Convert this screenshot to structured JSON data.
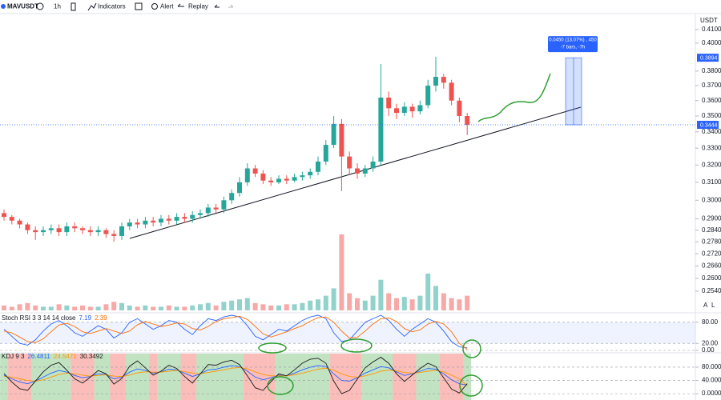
{
  "toolbar": {
    "symbol": "MAVUSDT",
    "interval": "1h",
    "indicators": "Indicators",
    "alert": "Alert",
    "replay": "Replay"
  },
  "axis_buttons": [
    "A",
    "L"
  ],
  "chart_data": [
    {
      "type": "candlestick",
      "unit": "USDT",
      "log_scale": true,
      "up_color": "#26a69a",
      "down_color": "#ef5350",
      "open": [
        0.293,
        0.291,
        0.289,
        0.287,
        0.284,
        0.283,
        0.284,
        0.285,
        0.283,
        0.286,
        0.285,
        0.284,
        0.283,
        0.284,
        0.282,
        0.281,
        0.286,
        0.288,
        0.287,
        0.289,
        0.288,
        0.29,
        0.289,
        0.291,
        0.29,
        0.292,
        0.293,
        0.296,
        0.295,
        0.3,
        0.304,
        0.31,
        0.318,
        0.315,
        0.311,
        0.31,
        0.312,
        0.311,
        0.313,
        0.314,
        0.316,
        0.322,
        0.332,
        0.345,
        0.325,
        0.318,
        0.315,
        0.318,
        0.322,
        0.362,
        0.355,
        0.352,
        0.356,
        0.353,
        0.357,
        0.37,
        0.376,
        0.372,
        0.36,
        0.35
      ],
      "high": [
        0.295,
        0.292,
        0.29,
        0.288,
        0.286,
        0.286,
        0.287,
        0.287,
        0.288,
        0.288,
        0.286,
        0.286,
        0.286,
        0.285,
        0.284,
        0.288,
        0.29,
        0.29,
        0.291,
        0.291,
        0.292,
        0.292,
        0.293,
        0.293,
        0.294,
        0.295,
        0.298,
        0.298,
        0.302,
        0.306,
        0.313,
        0.321,
        0.32,
        0.317,
        0.313,
        0.314,
        0.314,
        0.315,
        0.316,
        0.318,
        0.325,
        0.335,
        0.35,
        0.348,
        0.328,
        0.321,
        0.32,
        0.325,
        0.385,
        0.366,
        0.358,
        0.359,
        0.358,
        0.36,
        0.374,
        0.39,
        0.378,
        0.374,
        0.362,
        0.352
      ],
      "low": [
        0.289,
        0.287,
        0.285,
        0.282,
        0.279,
        0.281,
        0.282,
        0.281,
        0.281,
        0.283,
        0.282,
        0.281,
        0.281,
        0.28,
        0.278,
        0.279,
        0.284,
        0.285,
        0.285,
        0.286,
        0.286,
        0.287,
        0.287,
        0.288,
        0.288,
        0.29,
        0.291,
        0.293,
        0.293,
        0.298,
        0.302,
        0.308,
        0.313,
        0.309,
        0.308,
        0.309,
        0.309,
        0.31,
        0.311,
        0.312,
        0.314,
        0.32,
        0.33,
        0.305,
        0.314,
        0.312,
        0.313,
        0.316,
        0.32,
        0.35,
        0.348,
        0.35,
        0.349,
        0.351,
        0.355,
        0.366,
        0.368,
        0.357,
        0.346,
        0.338
      ],
      "close": [
        0.291,
        0.289,
        0.287,
        0.284,
        0.283,
        0.284,
        0.285,
        0.283,
        0.286,
        0.285,
        0.284,
        0.283,
        0.284,
        0.282,
        0.281,
        0.286,
        0.288,
        0.287,
        0.289,
        0.288,
        0.29,
        0.289,
        0.291,
        0.29,
        0.292,
        0.293,
        0.296,
        0.295,
        0.3,
        0.304,
        0.31,
        0.318,
        0.315,
        0.311,
        0.31,
        0.312,
        0.311,
        0.313,
        0.314,
        0.316,
        0.322,
        0.332,
        0.345,
        0.325,
        0.318,
        0.315,
        0.318,
        0.322,
        0.362,
        0.355,
        0.352,
        0.356,
        0.353,
        0.357,
        0.37,
        0.376,
        0.372,
        0.36,
        0.35,
        0.3444
      ],
      "volume": [
        4,
        3,
        5,
        6,
        4,
        3,
        3,
        5,
        4,
        3,
        4,
        3,
        3,
        5,
        7,
        6,
        4,
        3,
        4,
        3,
        3,
        4,
        3,
        3,
        4,
        5,
        6,
        4,
        7,
        8,
        9,
        10,
        6,
        5,
        4,
        4,
        5,
        5,
        6,
        8,
        9,
        12,
        18,
        62,
        14,
        10,
        8,
        12,
        25,
        14,
        10,
        11,
        9,
        12,
        30,
        20,
        14,
        10,
        9,
        12
      ],
      "vlim": [
        0,
        62
      ],
      "ylim": [
        0.2445,
        0.4203
      ],
      "yticks": [
        {
          "value": 0.41,
          "label": "0.4100"
        },
        {
          "value": 0.4,
          "label": "0.4000"
        },
        {
          "value": 0.38,
          "label": "0.3800"
        },
        {
          "value": 0.37,
          "label": "0.3700"
        },
        {
          "value": 0.36,
          "label": "0.3600"
        },
        {
          "value": 0.35,
          "label": "0.3500"
        },
        {
          "value": 0.34,
          "label": "0.3400"
        },
        {
          "value": 0.33,
          "label": "0.3300"
        },
        {
          "value": 0.32,
          "label": "0.3200"
        },
        {
          "value": 0.31,
          "label": "0.3100"
        },
        {
          "value": 0.3,
          "label": "0.3000"
        },
        {
          "value": 0.29,
          "label": "0.2900"
        },
        {
          "value": 0.284,
          "label": "0.2840"
        },
        {
          "value": 0.278,
          "label": "0.2780"
        },
        {
          "value": 0.272,
          "label": "0.2720"
        },
        {
          "value": 0.266,
          "label": "0.2660"
        },
        {
          "value": 0.26,
          "label": "0.2600"
        },
        {
          "value": 0.254,
          "label": "0.2540"
        }
      ],
      "price_markers": [
        0.3894,
        0.3444
      ],
      "annotations": [
        "0.0450 (13.07%) , 450",
        "-7 bars, -7h"
      ]
    },
    {
      "type": "line",
      "title": "Stoch RSI 3 3 14 14 close",
      "ylim": [
        0,
        100
      ],
      "yticks": [
        {
          "value": 80,
          "label": "80.00"
        },
        {
          "value": 20,
          "label": "20.00"
        },
        {
          "value": 0,
          "label": "0.00"
        }
      ],
      "series": [
        {
          "color": "#2962ff",
          "values": [
            60,
            40,
            20,
            15,
            30,
            55,
            75,
            85,
            70,
            50,
            40,
            55,
            70,
            60,
            35,
            50,
            80,
            90,
            75,
            60,
            70,
            85,
            80,
            60,
            45,
            70,
            90,
            85,
            95,
            100,
            95,
            70,
            40,
            30,
            45,
            60,
            55,
            70,
            85,
            95,
            100,
            90,
            50,
            25,
            30,
            55,
            80,
            90,
            100,
            85,
            60,
            40,
            60,
            75,
            90,
            80,
            55,
            25,
            10,
            7.19
          ]
        },
        {
          "color": "#ff6d00",
          "values": [
            55,
            50,
            38,
            25,
            22,
            33,
            53,
            72,
            77,
            68,
            53,
            48,
            55,
            62,
            55,
            48,
            55,
            73,
            82,
            75,
            68,
            72,
            78,
            75,
            62,
            58,
            68,
            82,
            90,
            93,
            97,
            88,
            68,
            47,
            38,
            45,
            53,
            62,
            70,
            83,
            93,
            95,
            80,
            55,
            35,
            37,
            55,
            75,
            90,
            92,
            82,
            62,
            53,
            58,
            75,
            82,
            75,
            53,
            20,
            2.39
          ]
        }
      ]
    },
    {
      "type": "line",
      "title": "KDJ 9 3",
      "ylim": [
        -19,
        121
      ],
      "yticks": [
        {
          "value": 80,
          "label": "80.0000"
        },
        {
          "value": 40,
          "label": "40.0000"
        },
        {
          "value": 0,
          "label": "0.0000"
        }
      ],
      "series": [
        {
          "color": "#2962ff",
          "values": [
            55,
            45,
            35,
            30,
            38,
            50,
            62,
            70,
            65,
            55,
            48,
            52,
            60,
            58,
            45,
            50,
            65,
            75,
            70,
            62,
            66,
            74,
            72,
            62,
            52,
            60,
            72,
            74,
            80,
            85,
            82,
            68,
            50,
            42,
            48,
            56,
            54,
            62,
            72,
            80,
            85,
            82,
            60,
            40,
            38,
            48,
            62,
            72,
            82,
            78,
            66,
            55,
            60,
            68,
            76,
            74,
            60,
            42,
            30,
            26.4811
          ]
        },
        {
          "color": "#ff9800",
          "values": [
            52,
            50,
            45,
            40,
            38,
            42,
            50,
            58,
            62,
            60,
            56,
            53,
            55,
            57,
            53,
            52,
            56,
            63,
            66,
            65,
            65,
            68,
            70,
            67,
            62,
            60,
            64,
            68,
            72,
            77,
            79,
            75,
            66,
            58,
            54,
            54,
            54,
            57,
            62,
            68,
            74,
            77,
            71,
            60,
            52,
            50,
            54,
            60,
            68,
            71,
            69,
            64,
            62,
            64,
            68,
            70,
            66,
            56,
            44,
            24.5471
          ]
        },
        {
          "color": "#1a1a1a",
          "values": [
            61,
            35,
            15,
            10,
            38,
            66,
            86,
            94,
            71,
            45,
            32,
            50,
            70,
            60,
            29,
            46,
            83,
            99,
            78,
            56,
            68,
            86,
            76,
            52,
            32,
            60,
            88,
            86,
            96,
            101,
            88,
            54,
            18,
            10,
            36,
            60,
            54,
            72,
            92,
            104,
            107,
            92,
            38,
            0,
            10,
            44,
            78,
            96,
            110,
            92,
            60,
            37,
            56,
            76,
            92,
            82,
            48,
            14,
            2,
            30.3492
          ]
        }
      ]
    }
  ]
}
